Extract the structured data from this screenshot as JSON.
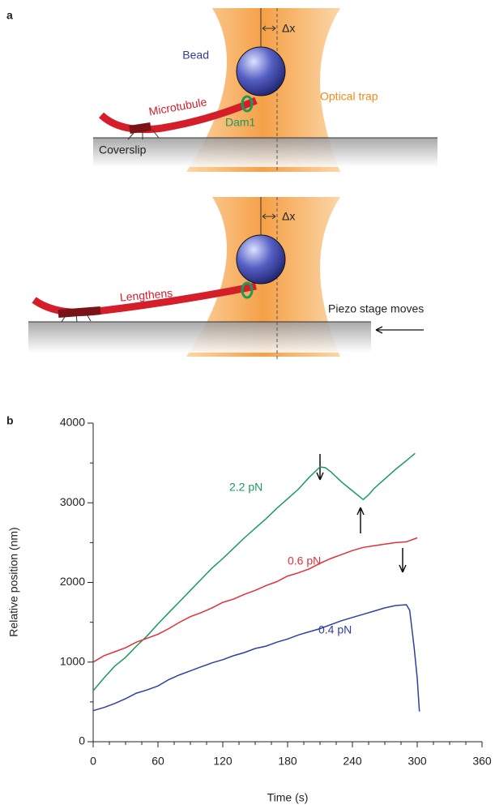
{
  "panel_a": {
    "label": "a",
    "top": {
      "bead": "Bead",
      "delta": "Δx",
      "trap": "Optical trap",
      "microtubule": "Microtubule",
      "dam1": "Dam1",
      "coverslip": "Coverslip"
    },
    "bottom": {
      "delta": "Δx",
      "microtubule": "Lengthens",
      "stage": "Piezo stage moves"
    }
  },
  "chart_data": {
    "type": "line",
    "panel_label": "b",
    "x_label": "Time (s)",
    "y_label": "Relative position (nm)",
    "xlim": [
      0,
      360
    ],
    "ylim": [
      0,
      4000
    ],
    "xticks": [
      0,
      60,
      120,
      180,
      240,
      300,
      360
    ],
    "yticks": [
      0,
      1000,
      2000,
      3000,
      4000
    ],
    "xticks_minor": [
      15,
      30,
      45,
      75,
      90,
      105,
      135,
      150,
      165,
      195,
      210,
      225,
      255,
      270,
      285,
      315,
      330,
      345
    ],
    "yticks_minor": [
      500,
      1500,
      2500,
      3500
    ],
    "series": [
      {
        "name": "2.2 pN",
        "color": "#1b9a5c",
        "x": [
          0,
          10,
          20,
          30,
          40,
          50,
          60,
          70,
          80,
          90,
          100,
          110,
          120,
          130,
          140,
          150,
          160,
          170,
          180,
          190,
          200,
          210,
          215,
          220,
          230,
          240,
          250,
          255,
          260,
          270,
          280,
          290,
          298
        ],
        "values": [
          640,
          800,
          950,
          1060,
          1200,
          1330,
          1480,
          1620,
          1760,
          1900,
          2040,
          2180,
          2300,
          2430,
          2560,
          2680,
          2800,
          2930,
          3050,
          3170,
          3320,
          3450,
          3440,
          3390,
          3260,
          3150,
          3040,
          3100,
          3180,
          3300,
          3420,
          3530,
          3620
        ]
      },
      {
        "name": "0.6 pN",
        "color": "#e0303a",
        "x": [
          0,
          10,
          20,
          30,
          40,
          50,
          60,
          70,
          80,
          90,
          100,
          110,
          120,
          130,
          140,
          150,
          160,
          170,
          180,
          190,
          200,
          210,
          220,
          230,
          240,
          250,
          260,
          270,
          280,
          290,
          300
        ],
        "values": [
          1000,
          1080,
          1130,
          1180,
          1250,
          1300,
          1350,
          1420,
          1500,
          1570,
          1620,
          1680,
          1750,
          1790,
          1850,
          1900,
          1960,
          2010,
          2080,
          2120,
          2170,
          2240,
          2300,
          2350,
          2400,
          2440,
          2460,
          2480,
          2500,
          2510,
          2560
        ]
      },
      {
        "name": "0.4 pN",
        "color": "#3040a0",
        "x": [
          0,
          10,
          20,
          30,
          40,
          50,
          60,
          70,
          80,
          90,
          100,
          110,
          120,
          130,
          140,
          150,
          160,
          170,
          180,
          190,
          200,
          210,
          220,
          230,
          240,
          250,
          260,
          270,
          280,
          290,
          293,
          297,
          300,
          302
        ],
        "values": [
          390,
          430,
          480,
          540,
          610,
          650,
          700,
          780,
          840,
          890,
          940,
          990,
          1030,
          1080,
          1120,
          1170,
          1200,
          1250,
          1290,
          1340,
          1380,
          1420,
          1470,
          1520,
          1560,
          1600,
          1640,
          1680,
          1710,
          1720,
          1650,
          1200,
          800,
          380
        ]
      }
    ]
  }
}
